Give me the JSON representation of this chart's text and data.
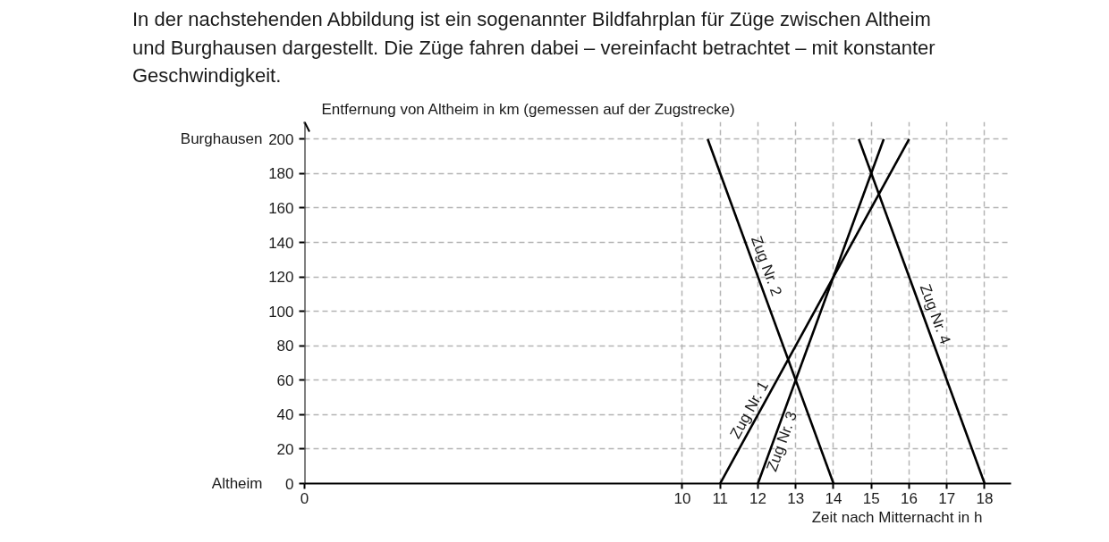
{
  "chart_data": {
    "type": "line",
    "title": "In der nachstehenden Abbildung ist ein sogenannter Bildfahrplan für Züge zwischen Altheim und Burghausen dargestellt. Die Züge fahren dabei – vereinfacht betrachtet – mit konstanter Geschwindigkeit.",
    "xlabel": "Zeit nach Mitternacht in h",
    "ylabel": "Entfernung von Altheim in km (gemessen auf der Zugstrecke)",
    "xlim": [
      0,
      18.7
    ],
    "xticks": [
      0,
      10,
      11,
      12,
      13,
      14,
      15,
      16,
      17,
      18
    ],
    "ylim": [
      0,
      210
    ],
    "yticks": [
      0,
      20,
      40,
      60,
      80,
      100,
      120,
      140,
      160,
      180,
      200
    ],
    "annotations": [
      "Burghausen",
      "Altheim"
    ],
    "grid": true,
    "series": [
      {
        "name": "Zug Nr. 1",
        "color": "#000000",
        "x": [
          11,
          16
        ],
        "values": [
          0,
          200
        ]
      },
      {
        "name": "Zug Nr. 2",
        "color": "#000000",
        "x": [
          10.67,
          14
        ],
        "values": [
          200,
          0
        ]
      },
      {
        "name": "Zug Nr. 3",
        "color": "#000000",
        "x": [
          12,
          15.33
        ],
        "values": [
          0,
          200
        ]
      },
      {
        "name": "Zug Nr. 4",
        "color": "#000000",
        "x": [
          14.67,
          18
        ],
        "values": [
          200,
          0
        ]
      }
    ]
  }
}
